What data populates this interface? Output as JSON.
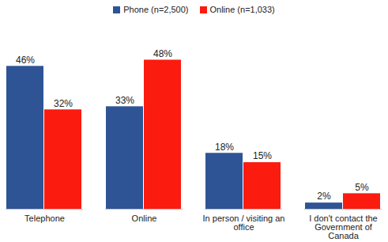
{
  "chart_data": {
    "type": "bar",
    "categories": [
      "Telephone",
      "Online",
      "In person / visiting an office",
      "I don't contact the Government of Canada"
    ],
    "series": [
      {
        "name": "Phone (n=2,500)",
        "color": "#2e5496",
        "values": [
          46,
          33,
          18,
          2
        ],
        "value_labels": [
          "46%",
          "33%",
          "18%",
          "2%"
        ]
      },
      {
        "name": "Online (n=1,033)",
        "color": "#fb1b0f",
        "values": [
          32,
          48,
          15,
          5
        ],
        "value_labels": [
          "32%",
          "48%",
          "15%",
          "5%"
        ]
      }
    ],
    "ylim": [
      0,
      55
    ],
    "data_labels": true,
    "legend": "top",
    "tick_labels": "x"
  }
}
